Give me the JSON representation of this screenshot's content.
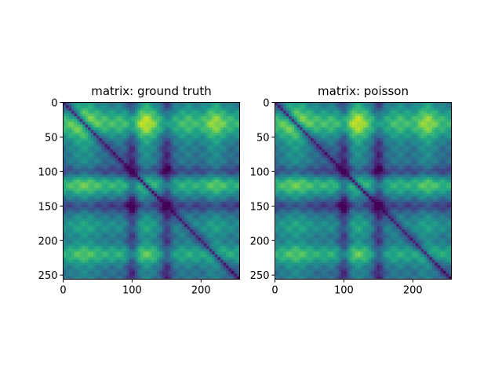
{
  "chart_data": [
    {
      "type": "heatmap",
      "title": "matrix: ground truth",
      "matrix_size": 256,
      "xlim": [
        0,
        256
      ],
      "ylim": [
        256,
        0
      ],
      "xticks": [
        0,
        100,
        200
      ],
      "yticks": [
        0,
        50,
        100,
        150,
        200,
        250
      ],
      "colormap": "viridis",
      "value_range": [
        0,
        1
      ],
      "structure": {
        "diagonal_value": 0.0,
        "bright_row_bands": [
          {
            "center": 30,
            "width": 15,
            "value": 0.95
          },
          {
            "center": 120,
            "width": 10,
            "value": 0.9
          },
          {
            "center": 180,
            "width": 10,
            "value": 0.6
          },
          {
            "center": 220,
            "width": 10,
            "value": 0.85
          }
        ],
        "dark_column_bands": [
          {
            "center": 100,
            "value": 0.2
          },
          {
            "center": 150,
            "value": 0.15
          }
        ]
      }
    },
    {
      "type": "heatmap",
      "title": "matrix: poisson",
      "matrix_size": 256,
      "xlim": [
        0,
        256
      ],
      "ylim": [
        256,
        0
      ],
      "xticks": [
        0,
        100,
        200
      ],
      "yticks": [
        0,
        50,
        100,
        150,
        200,
        250
      ],
      "colormap": "viridis",
      "value_range": [
        0,
        1
      ],
      "structure": {
        "diagonal_value": 0.0,
        "bright_row_bands": [
          {
            "center": 30,
            "width": 15,
            "value": 0.95
          },
          {
            "center": 120,
            "width": 10,
            "value": 0.9
          },
          {
            "center": 180,
            "width": 10,
            "value": 0.6
          },
          {
            "center": 220,
            "width": 10,
            "value": 0.85
          }
        ],
        "dark_column_bands": [
          {
            "center": 100,
            "value": 0.2
          },
          {
            "center": 150,
            "value": 0.15
          }
        ]
      }
    }
  ]
}
